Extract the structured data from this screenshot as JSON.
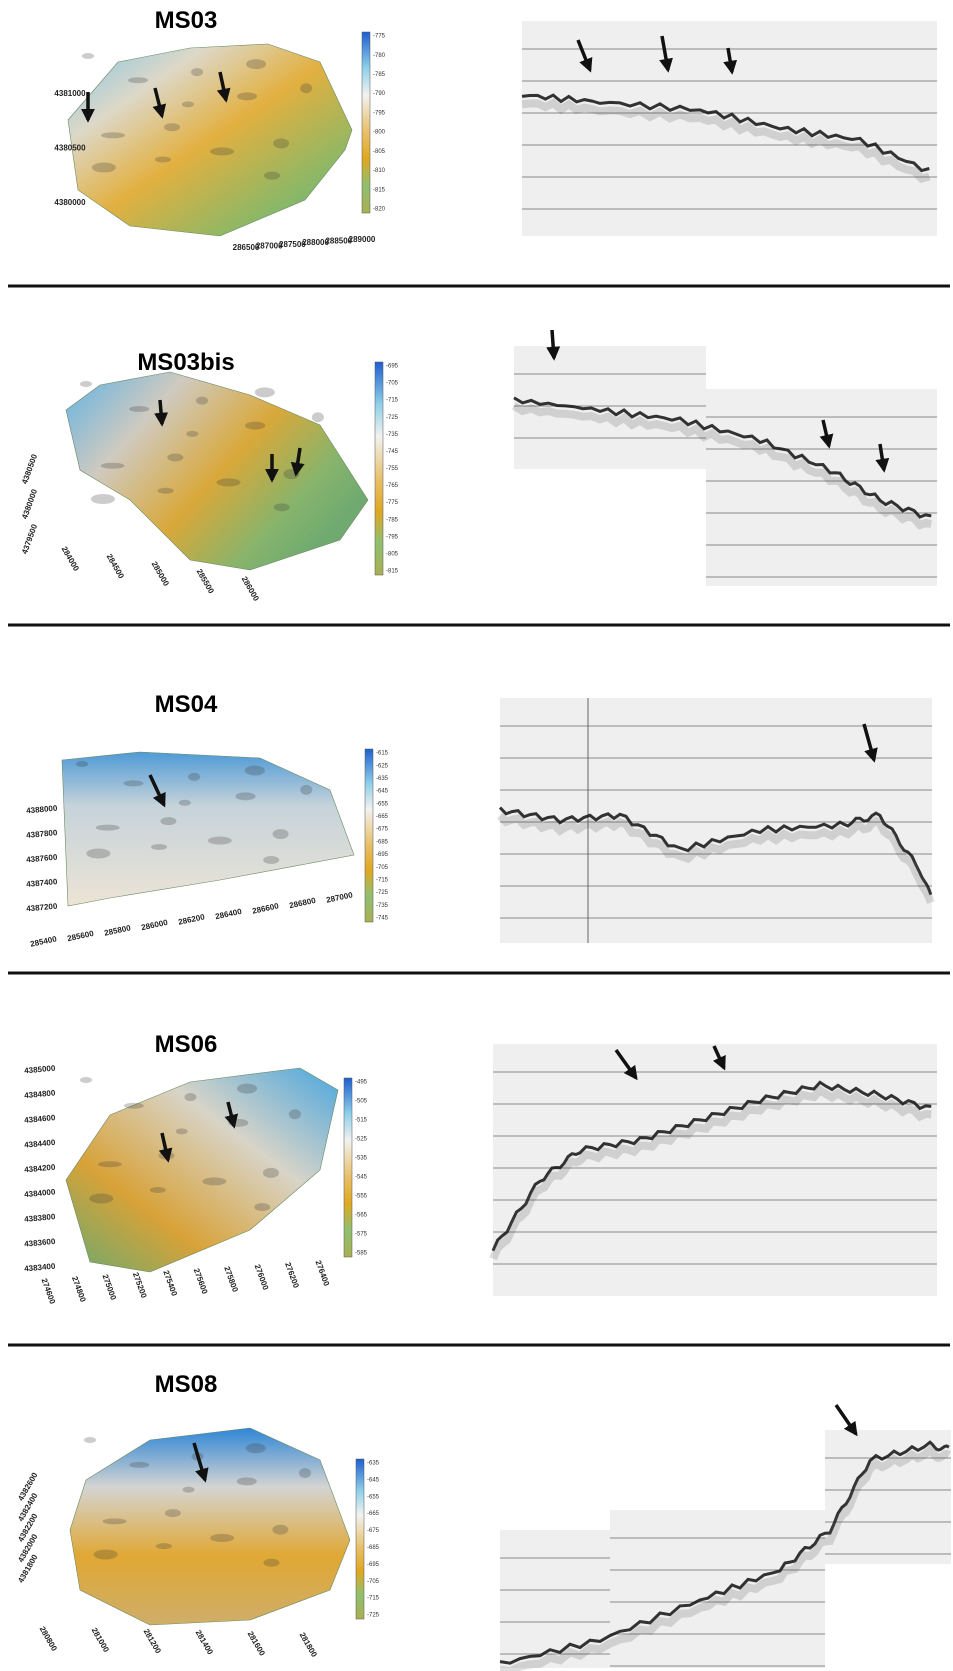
{
  "panels": [
    {
      "title": "MS03",
      "colorbar": [
        "-775",
        "-780",
        "-785",
        "-790",
        "-795",
        "-800",
        "-805",
        "-810",
        "-815",
        "-820"
      ],
      "x_axis": [
        "286500",
        "287000",
        "287500",
        "288000",
        "288500",
        "289000"
      ],
      "y_axis": [
        "4381000",
        "4380500",
        "4380000"
      ]
    },
    {
      "title": "MS03bis",
      "colorbar": [
        "-695",
        "-705",
        "-715",
        "-725",
        "-735",
        "-745",
        "-755",
        "-765",
        "-775",
        "-785",
        "-795",
        "-805",
        "-815"
      ],
      "x_axis": [
        "284000",
        "284500",
        "285000",
        "285500",
        "286000"
      ],
      "y_axis": [
        "4380500",
        "4380000",
        "4379500"
      ]
    },
    {
      "title": "MS04",
      "colorbar": [
        "-615",
        "-625",
        "-635",
        "-645",
        "-655",
        "-665",
        "-675",
        "-685",
        "-695",
        "-705",
        "-715",
        "-725",
        "-735",
        "-745"
      ],
      "x_axis": [
        "285400",
        "285600",
        "285800",
        "286000",
        "286200",
        "286400",
        "286600",
        "286800",
        "287000"
      ],
      "y_axis": [
        "4388000",
        "4387800",
        "4387600",
        "4387400",
        "4387200"
      ]
    },
    {
      "title": "MS06",
      "colorbar": [
        "-495",
        "-505",
        "-515",
        "-525",
        "-535",
        "-545",
        "-555",
        "-565",
        "-575",
        "-585"
      ],
      "x_axis": [
        "274600",
        "274800",
        "275000",
        "275200",
        "275400",
        "275600",
        "275800",
        "276000",
        "276200",
        "276400"
      ],
      "y_axis": [
        "4385000",
        "4384800",
        "4384600",
        "4384400",
        "4384200",
        "4384000",
        "4383800",
        "4383600",
        "4383400"
      ]
    },
    {
      "title": "MS08",
      "colorbar": [
        "-635",
        "-645",
        "-655",
        "-665",
        "-675",
        "-685",
        "-695",
        "-705",
        "-715",
        "-725"
      ],
      "x_axis": [
        "280800",
        "281000",
        "281200",
        "281400",
        "281600",
        "281800"
      ],
      "y_axis": [
        "4382600",
        "4382400",
        "4382200",
        "4382000",
        "4381800"
      ]
    }
  ]
}
